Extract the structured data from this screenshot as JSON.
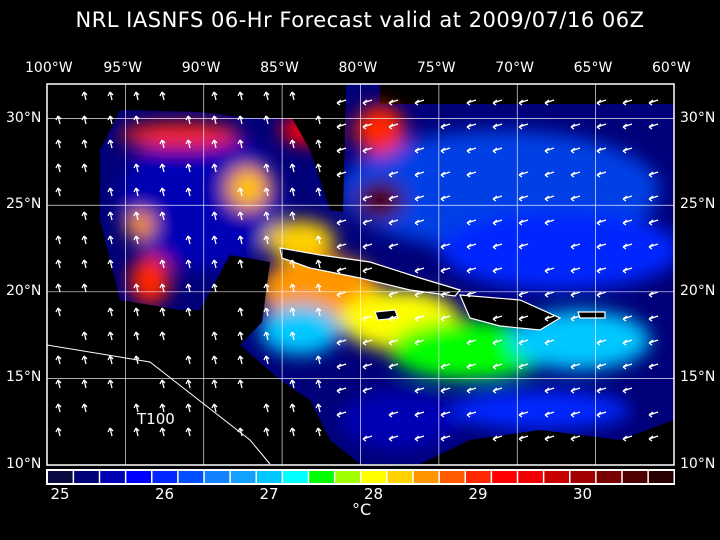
{
  "title": "NRL IASNFS  06-Hr Forecast valid at 2009/07/16 06Z",
  "map": {
    "lon_labels": [
      "100°W",
      "95°W",
      "90°W",
      "85°W",
      "80°W",
      "75°W",
      "70°W",
      "65°W",
      "60°W"
    ],
    "lon_values": [
      -100,
      -95,
      -90,
      -85,
      -80,
      -75,
      -70,
      -65,
      -60
    ],
    "lat_labels": [
      "30°N",
      "25°N",
      "20°N",
      "15°N",
      "10°N"
    ],
    "lat_values": [
      30,
      25,
      20,
      15,
      10
    ],
    "extent": {
      "lon": [
        -100,
        -60
      ],
      "lat": [
        10,
        32
      ]
    },
    "grid": true,
    "layer_label": "T100",
    "land_color": "#000000",
    "coast_color": "#ffffff",
    "wind_vectors": true
  },
  "colorbar": {
    "unit": "°C",
    "min": 25,
    "max": 31,
    "step": 0.25,
    "tick_labels": [
      "25",
      "26",
      "27",
      "28",
      "29",
      "30"
    ],
    "tick_values": [
      25,
      26,
      27,
      28,
      29,
      30
    ],
    "colors": [
      "#0a0a40",
      "#000078",
      "#0000b4",
      "#0000ff",
      "#0028ff",
      "#0050ff",
      "#1482ff",
      "#14a0ff",
      "#00c8ff",
      "#00ffff",
      "#00ff00",
      "#a0ff00",
      "#ffff00",
      "#ffd200",
      "#ff9600",
      "#ff5a00",
      "#ff2800",
      "#ff0000",
      "#f00000",
      "#c80000",
      "#a00000",
      "#780000",
      "#500000",
      "#280000"
    ]
  }
}
